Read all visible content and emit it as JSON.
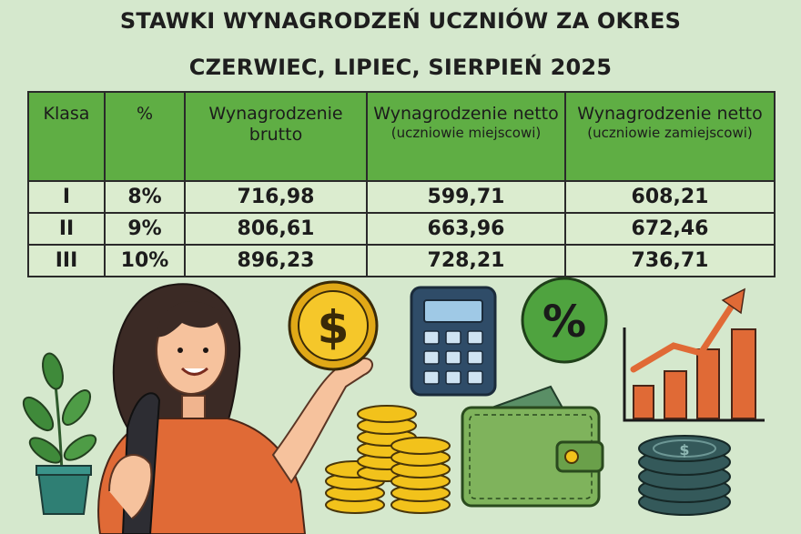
{
  "title": {
    "line1": "STAWKI WYNAGRODZEŃ UCZNIÓW ZA OKRES",
    "line2": "CZERWIEC, LIPIEC, SIERPIEŃ 2025"
  },
  "table": {
    "headers": {
      "klasa": "Klasa",
      "percent": "%",
      "brutto": "Wynagrodzenie brutto",
      "netto_local": "Wynagrodzenie netto",
      "netto_local_sub": "(uczniowie miejscowi)",
      "netto_nonlocal": "Wynagrodzenie netto",
      "netto_nonlocal_sub": "(uczniowie zamiejscowi)"
    },
    "rows": [
      {
        "klasa": "I",
        "percent": "8%",
        "brutto": "716,98",
        "netto_local": "599,71",
        "netto_nonlocal": "608,21"
      },
      {
        "klasa": "II",
        "percent": "9%",
        "brutto": "806,61",
        "netto_local": "663,96",
        "netto_nonlocal": "672,46"
      },
      {
        "klasa": "III",
        "percent": "10%",
        "brutto": "896,23",
        "netto_local": "728,21",
        "netto_nonlocal": "736,71"
      }
    ]
  },
  "illustration": {
    "coin_symbol": "$",
    "percent_symbol": "%",
    "colors": {
      "background": "#d5e8cd",
      "header_green": "#5fae44",
      "row_green": "#dbeccf",
      "gold": "#f2c21b",
      "orange": "#e06a36",
      "navy": "#2f4c68",
      "teal": "#34595a",
      "wallet_green": "#7fb35c"
    },
    "icons": [
      "plant-icon",
      "student-icon",
      "coin-icon",
      "calculator-icon",
      "percent-badge-icon",
      "wallet-icon",
      "growth-chart-icon",
      "coin-stack-icon"
    ]
  }
}
